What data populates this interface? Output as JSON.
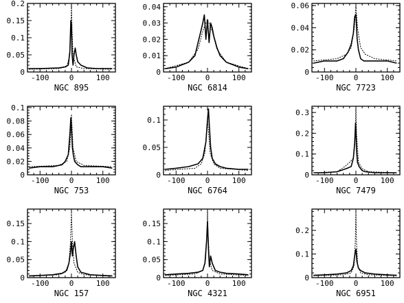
{
  "chart_data": [
    {
      "type": "line",
      "title": "NGC 895",
      "ylim": [
        0,
        0.2
      ],
      "yticks": [
        0,
        0.05,
        0.1,
        0.15,
        0.2
      ],
      "yticklabels": [
        "0",
        "0.05",
        "0.1",
        "0.15",
        "0.2"
      ],
      "xlim": [
        -140,
        140
      ],
      "xticks": [
        -100,
        0,
        100
      ],
      "xticklabels": [
        "-100",
        "0",
        "100"
      ],
      "grid": false,
      "series": [
        {
          "style": "solid",
          "x": [
            -135,
            -100,
            -40,
            -20,
            -10,
            -5,
            -2,
            0,
            2,
            5,
            8,
            12,
            15,
            20,
            30,
            50,
            80,
            110,
            130
          ],
          "y": [
            0.01,
            0.01,
            0.012,
            0.015,
            0.02,
            0.06,
            0.15,
            0.14,
            0.05,
            0.02,
            0.05,
            0.07,
            0.05,
            0.03,
            0.02,
            0.012,
            0.01,
            0.01,
            0.01
          ]
        },
        {
          "style": "dashed",
          "x": [
            -135,
            -40,
            -15,
            -5,
            -2,
            0,
            2,
            5,
            15,
            40,
            130
          ],
          "y": [
            0.008,
            0.01,
            0.015,
            0.05,
            0.12,
            0.2,
            0.12,
            0.05,
            0.015,
            0.01,
            0.008
          ]
        }
      ]
    },
    {
      "type": "line",
      "title": "NGC 6814",
      "ylim": [
        0,
        0.042
      ],
      "yticks": [
        0,
        0.01,
        0.02,
        0.03,
        0.04
      ],
      "yticklabels": [
        "0",
        "0.01",
        "0.02",
        "0.03",
        "0.04"
      ],
      "xlim": [
        -140,
        140
      ],
      "xticks": [
        -100,
        0,
        100
      ],
      "xticklabels": [
        "-100",
        "0",
        "100"
      ],
      "grid": false,
      "series": [
        {
          "style": "solid",
          "x": [
            -135,
            -100,
            -60,
            -40,
            -30,
            -20,
            -15,
            -10,
            -5,
            0,
            5,
            10,
            15,
            20,
            30,
            40,
            60,
            100,
            130
          ],
          "y": [
            0.002,
            0.003,
            0.006,
            0.01,
            0.018,
            0.026,
            0.03,
            0.035,
            0.02,
            0.032,
            0.018,
            0.03,
            0.027,
            0.022,
            0.015,
            0.01,
            0.006,
            0.003,
            0.002
          ]
        },
        {
          "style": "dashed",
          "x": [
            -135,
            -60,
            -30,
            -15,
            -5,
            0,
            5,
            15,
            30,
            60,
            130
          ],
          "y": [
            0.002,
            0.006,
            0.014,
            0.025,
            0.03,
            0.032,
            0.03,
            0.025,
            0.014,
            0.006,
            0.002
          ]
        }
      ]
    },
    {
      "type": "line",
      "title": "NGC 7723",
      "ylim": [
        0,
        0.062
      ],
      "yticks": [
        0,
        0.02,
        0.04,
        0.06
      ],
      "yticklabels": [
        "0",
        "0.02",
        "0.04",
        "0.06"
      ],
      "xlim": [
        -140,
        140
      ],
      "xticks": [
        -100,
        0,
        100
      ],
      "xticklabels": [
        "-100",
        "0",
        "100"
      ],
      "grid": false,
      "series": [
        {
          "style": "solid",
          "x": [
            -135,
            -100,
            -60,
            -40,
            -25,
            -15,
            -8,
            -4,
            0,
            4,
            8,
            15,
            25,
            40,
            60,
            100,
            130
          ],
          "y": [
            0.008,
            0.01,
            0.01,
            0.012,
            0.018,
            0.025,
            0.035,
            0.05,
            0.052,
            0.03,
            0.02,
            0.012,
            0.01,
            0.01,
            0.01,
            0.01,
            0.008
          ]
        },
        {
          "style": "dashed",
          "x": [
            -135,
            -60,
            -30,
            -15,
            -5,
            0,
            5,
            15,
            30,
            60,
            130
          ],
          "y": [
            0.01,
            0.012,
            0.016,
            0.022,
            0.04,
            0.06,
            0.04,
            0.022,
            0.016,
            0.012,
            0.01
          ]
        }
      ]
    },
    {
      "type": "line",
      "title": "NGC 753",
      "ylim": [
        0,
        0.102
      ],
      "yticks": [
        0,
        0.02,
        0.04,
        0.06,
        0.08,
        0.1
      ],
      "yticklabels": [
        "0",
        "0.02",
        "0.04",
        "0.06",
        "0.08",
        "0.1"
      ],
      "xlim": [
        -140,
        140
      ],
      "xticks": [
        -100,
        0,
        100
      ],
      "xticklabels": [
        "-100",
        "0",
        "100"
      ],
      "grid": false,
      "series": [
        {
          "style": "solid",
          "x": [
            -135,
            -100,
            -60,
            -30,
            -20,
            -10,
            -5,
            -2,
            0,
            3,
            6,
            10,
            20,
            30,
            60,
            100,
            130
          ],
          "y": [
            0.01,
            0.012,
            0.012,
            0.015,
            0.02,
            0.03,
            0.06,
            0.085,
            0.07,
            0.04,
            0.03,
            0.02,
            0.015,
            0.012,
            0.012,
            0.012,
            0.01
          ]
        },
        {
          "style": "dashed",
          "x": [
            -135,
            -40,
            -15,
            -5,
            -2,
            0,
            2,
            5,
            15,
            40,
            130
          ],
          "y": [
            0.012,
            0.014,
            0.02,
            0.04,
            0.07,
            0.09,
            0.07,
            0.04,
            0.02,
            0.014,
            0.012
          ]
        }
      ]
    },
    {
      "type": "line",
      "title": "NGC 6764",
      "ylim": [
        0,
        0.125
      ],
      "yticks": [
        0,
        0.05,
        0.1
      ],
      "yticklabels": [
        "0",
        "0.05",
        "0.1"
      ],
      "xlim": [
        -140,
        140
      ],
      "xticks": [
        -100,
        0,
        100
      ],
      "xticklabels": [
        "-100",
        "0",
        "100"
      ],
      "grid": false,
      "series": [
        {
          "style": "solid",
          "x": [
            -135,
            -100,
            -60,
            -30,
            -15,
            -5,
            0,
            3,
            6,
            10,
            15,
            25,
            40,
            60,
            100,
            130
          ],
          "y": [
            0.01,
            0.012,
            0.015,
            0.02,
            0.03,
            0.06,
            0.1,
            0.12,
            0.09,
            0.05,
            0.03,
            0.02,
            0.015,
            0.012,
            0.01,
            0.01
          ]
        },
        {
          "style": "dashed",
          "x": [
            -135,
            -40,
            -20,
            -8,
            -3,
            0,
            3,
            8,
            20,
            40,
            130
          ],
          "y": [
            0.008,
            0.012,
            0.02,
            0.04,
            0.08,
            0.1,
            0.08,
            0.04,
            0.02,
            0.012,
            0.008
          ]
        }
      ]
    },
    {
      "type": "line",
      "title": "NGC 7479",
      "ylim": [
        0,
        0.33
      ],
      "yticks": [
        0,
        0.1,
        0.2,
        0.3
      ],
      "yticklabels": [
        "0",
        "0.1",
        "0.2",
        "0.3"
      ],
      "xlim": [
        -140,
        140
      ],
      "xticks": [
        -100,
        0,
        100
      ],
      "xticklabels": [
        "-100",
        "0",
        "100"
      ],
      "grid": false,
      "series": [
        {
          "style": "solid",
          "x": [
            -135,
            -100,
            -60,
            -30,
            -15,
            -8,
            -4,
            -1,
            0,
            2,
            5,
            10,
            20,
            30,
            60,
            100,
            130
          ],
          "y": [
            0.01,
            0.01,
            0.015,
            0.03,
            0.04,
            0.08,
            0.15,
            0.25,
            0.22,
            0.12,
            0.06,
            0.04,
            0.02,
            0.015,
            0.01,
            0.01,
            0.01
          ]
        },
        {
          "style": "dashed",
          "x": [
            -135,
            -60,
            -35,
            -20,
            -8,
            -2,
            0,
            2,
            8,
            20,
            40,
            130
          ],
          "y": [
            0.01,
            0.015,
            0.04,
            0.06,
            0.08,
            0.2,
            0.32,
            0.2,
            0.06,
            0.03,
            0.015,
            0.01
          ]
        }
      ]
    },
    {
      "type": "line",
      "title": "NGC 157",
      "ylim": [
        0,
        0.19
      ],
      "yticks": [
        0,
        0.05,
        0.1,
        0.15
      ],
      "yticklabels": [
        "0",
        "0.05",
        "0.1",
        "0.15"
      ],
      "xlim": [
        -140,
        140
      ],
      "xticks": [
        -100,
        0,
        100
      ],
      "xticklabels": [
        "-100",
        "0",
        "100"
      ],
      "grid": false,
      "series": [
        {
          "style": "solid",
          "x": [
            -135,
            -100,
            -60,
            -30,
            -15,
            -8,
            -3,
            0,
            3,
            6,
            10,
            15,
            20,
            30,
            60,
            100,
            130
          ],
          "y": [
            0.005,
            0.006,
            0.008,
            0.012,
            0.02,
            0.04,
            0.07,
            0.1,
            0.06,
            0.08,
            0.1,
            0.06,
            0.03,
            0.015,
            0.008,
            0.006,
            0.005
          ]
        },
        {
          "style": "dashed",
          "x": [
            -135,
            -40,
            -20,
            -8,
            -3,
            0,
            3,
            8,
            20,
            40,
            130
          ],
          "y": [
            0.004,
            0.008,
            0.015,
            0.04,
            0.1,
            0.18,
            0.1,
            0.04,
            0.015,
            0.008,
            0.004
          ]
        }
      ]
    },
    {
      "type": "line",
      "title": "NGC 4321",
      "ylim": [
        0,
        0.19
      ],
      "yticks": [
        0,
        0.05,
        0.1,
        0.15
      ],
      "yticklabels": [
        "0",
        "0.05",
        "0.1",
        "0.15"
      ],
      "xlim": [
        -140,
        140
      ],
      "xticks": [
        -100,
        0,
        100
      ],
      "xticklabels": [
        "-100",
        "0",
        "100"
      ],
      "grid": false,
      "series": [
        {
          "style": "solid",
          "x": [
            -135,
            -100,
            -60,
            -30,
            -15,
            -8,
            -3,
            0,
            3,
            6,
            10,
            15,
            25,
            40,
            60,
            100,
            130
          ],
          "y": [
            0.008,
            0.01,
            0.012,
            0.015,
            0.02,
            0.04,
            0.1,
            0.155,
            0.08,
            0.03,
            0.06,
            0.04,
            0.02,
            0.015,
            0.012,
            0.01,
            0.008
          ]
        },
        {
          "style": "dashed",
          "x": [
            -135,
            -40,
            -15,
            -6,
            -2,
            0,
            2,
            6,
            15,
            40,
            130
          ],
          "y": [
            0.006,
            0.01,
            0.02,
            0.05,
            0.12,
            0.185,
            0.12,
            0.05,
            0.02,
            0.01,
            0.006
          ]
        }
      ]
    },
    {
      "type": "line",
      "title": "NGC 6951",
      "ylim": [
        0,
        0.29
      ],
      "yticks": [
        0,
        0.1,
        0.2
      ],
      "yticklabels": [
        "0",
        "0.1",
        "0.2"
      ],
      "xlim": [
        -140,
        140
      ],
      "xticks": [
        -100,
        0,
        100
      ],
      "xticklabels": [
        "-100",
        "0",
        "100"
      ],
      "grid": false,
      "series": [
        {
          "style": "solid",
          "x": [
            -135,
            -100,
            -60,
            -30,
            -15,
            -8,
            -3,
            0,
            3,
            8,
            15,
            30,
            60,
            100,
            130
          ],
          "y": [
            0.01,
            0.012,
            0.015,
            0.02,
            0.03,
            0.05,
            0.1,
            0.12,
            0.07,
            0.04,
            0.03,
            0.02,
            0.015,
            0.012,
            0.01
          ]
        },
        {
          "style": "dashed",
          "x": [
            -135,
            -40,
            -15,
            -6,
            -2,
            0,
            2,
            6,
            15,
            40,
            130
          ],
          "y": [
            0.008,
            0.012,
            0.02,
            0.05,
            0.15,
            0.28,
            0.15,
            0.05,
            0.02,
            0.012,
            0.008
          ]
        }
      ]
    }
  ]
}
